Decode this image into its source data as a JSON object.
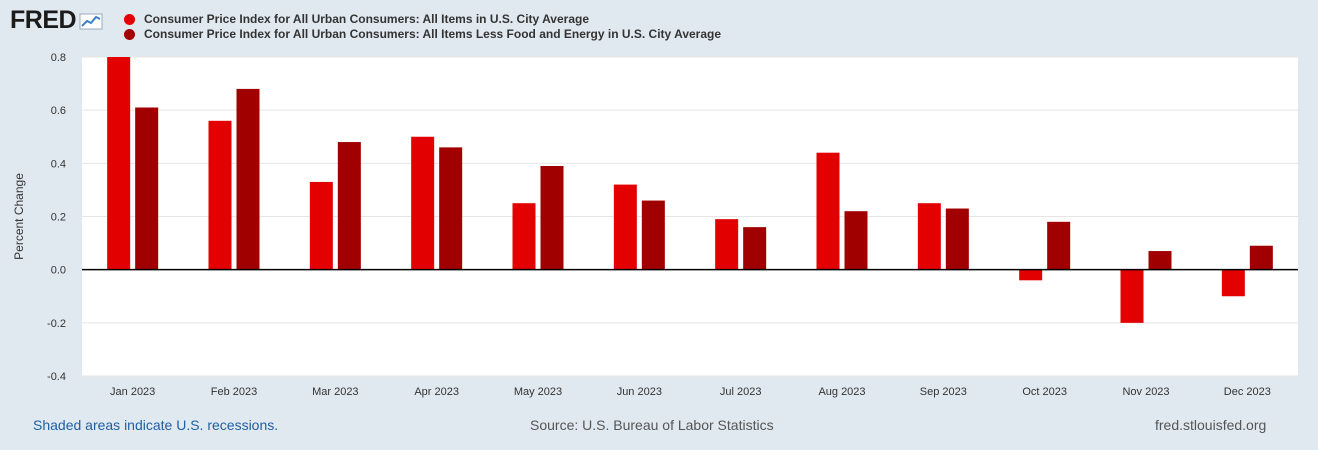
{
  "logo": {
    "text": "FRED",
    "icon": "chart-line-icon"
  },
  "legend": [
    {
      "label": "Consumer Price Index for All Urban Consumers: All Items in U.S. City Average",
      "color": "#e30000"
    },
    {
      "label": "Consumer Price Index for All Urban Consumers: All Items Less Food and Energy in U.S. City Average",
      "color": "#a00000"
    }
  ],
  "chart_data": {
    "type": "bar",
    "title": "",
    "xlabel": "",
    "ylabel": "Percent Change",
    "ylim": [
      -0.4,
      0.8
    ],
    "yticks": [
      -0.4,
      -0.2,
      0.0,
      0.2,
      0.4,
      0.6,
      0.8
    ],
    "ytick_labels": [
      "-0.4",
      "-0.2",
      "0.0",
      "0.2",
      "0.4",
      "0.6",
      "0.8"
    ],
    "categories": [
      "Jan 2023",
      "Feb 2023",
      "Mar 2023",
      "Apr 2023",
      "May 2023",
      "Jun 2023",
      "Jul 2023",
      "Aug 2023",
      "Sep 2023",
      "Oct 2023",
      "Nov 2023",
      "Dec 2023"
    ],
    "series": [
      {
        "name": "Consumer Price Index for All Urban Consumers: All Items in U.S. City Average",
        "color": "#e30000",
        "values": [
          0.8,
          0.56,
          0.33,
          0.5,
          0.25,
          0.32,
          0.19,
          0.44,
          0.25,
          -0.04,
          -0.2,
          -0.1
        ]
      },
      {
        "name": "Consumer Price Index for All Urban Consumers: All Items Less Food and Energy in U.S. City Average",
        "color": "#a00000",
        "values": [
          0.61,
          0.68,
          0.48,
          0.46,
          0.39,
          0.26,
          0.16,
          0.22,
          0.23,
          0.18,
          0.07,
          0.09
        ]
      }
    ],
    "grid": true
  },
  "footer": {
    "recessions": "Shaded areas indicate U.S. recessions.",
    "source": "Source: U.S. Bureau of Labor Statistics",
    "site": "fred.stlouisfed.org"
  }
}
